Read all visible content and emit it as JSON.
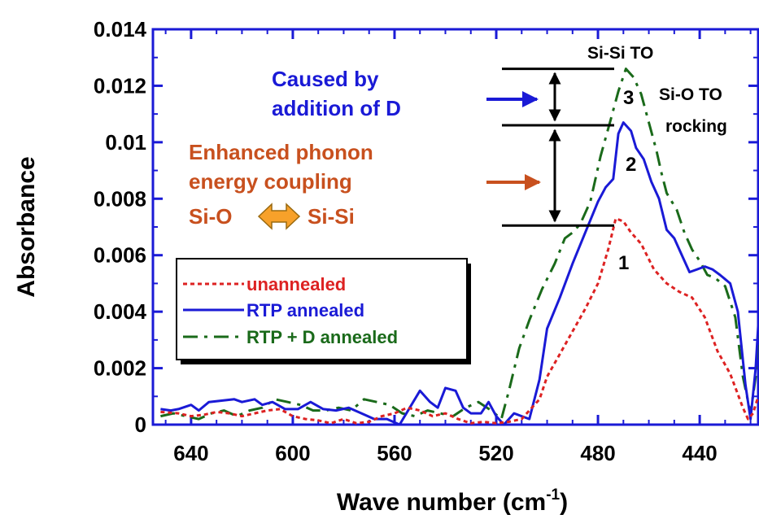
{
  "chart_data": {
    "type": "line",
    "title": "",
    "xlabel": "Wave number (cm",
    "xlabel_sup": "-1",
    "xlabel_close": ")",
    "ylabel": "Absorbance",
    "xlim": [
      655,
      417
    ],
    "ylim": [
      0,
      0.014
    ],
    "x_reversed": true,
    "x_ticks": [
      "640",
      "600",
      "560",
      "520",
      "480",
      "440"
    ],
    "x_tick_values": [
      640,
      600,
      560,
      520,
      480,
      440
    ],
    "y_ticks": [
      "0",
      "0.002",
      "0.004",
      "0.006",
      "0.008",
      "0.01",
      "0.012",
      "0.014"
    ],
    "y_tick_values": [
      0,
      0.002,
      0.004,
      0.006,
      0.008,
      0.01,
      0.012,
      0.014
    ],
    "legend_position": "middle-left",
    "series": [
      {
        "name": "unannealed",
        "color": "#dd2222",
        "dash": "dotted",
        "x": [
          652,
          645,
          640,
          635,
          630,
          625,
          620,
          615,
          610,
          605,
          600,
          595,
          590,
          585,
          580,
          575,
          570,
          565,
          560,
          555,
          550,
          545,
          540,
          535,
          530,
          525,
          520,
          515,
          510,
          507,
          503,
          500,
          495,
          490,
          485,
          480,
          476,
          473,
          470,
          467,
          463,
          458,
          453,
          448,
          443,
          438,
          433,
          428,
          423,
          421,
          419,
          417
        ],
        "y": [
          0.00045,
          0.0004,
          0.0003,
          0.00035,
          0.00045,
          0.0004,
          0.0003,
          0.0004,
          0.0005,
          0.00055,
          0.0003,
          0.0002,
          0.00015,
          5e-05,
          0.0002,
          5e-05,
          0.0001,
          0.0003,
          0.0004,
          0.0006,
          0.0005,
          0.0003,
          0.0004,
          0.0002,
          5e-05,
          0.0001,
          5e-05,
          0.0001,
          0.0002,
          0.0005,
          0.0009,
          0.0017,
          0.0025,
          0.0033,
          0.0041,
          0.005,
          0.0062,
          0.0073,
          0.0072,
          0.0068,
          0.0064,
          0.0055,
          0.005,
          0.0047,
          0.0045,
          0.0038,
          0.0026,
          0.0018,
          0.0006,
          0.0002,
          0.0004,
          0.001
        ]
      },
      {
        "name": "RTP annealed",
        "color": "#1a1ad6",
        "dash": "solid",
        "x": [
          652,
          648,
          645,
          640,
          637,
          633,
          628,
          623,
          620,
          615,
          612,
          608,
          603,
          598,
          593,
          588,
          583,
          578,
          573,
          568,
          563,
          558,
          554,
          550,
          546,
          543,
          540,
          536,
          533,
          530,
          526,
          523,
          520,
          517,
          513,
          510,
          507,
          503,
          500,
          495,
          490,
          485,
          480,
          477,
          474,
          472,
          470,
          467,
          465,
          462,
          459,
          456,
          453,
          450,
          447,
          444,
          441,
          438,
          435,
          432,
          428,
          425,
          422,
          420,
          418,
          417
        ],
        "y": [
          0.00055,
          0.0005,
          0.00055,
          0.0007,
          0.0005,
          0.0008,
          0.00085,
          0.0009,
          0.0008,
          0.0009,
          0.0007,
          0.0008,
          0.00055,
          0.00055,
          0.0008,
          0.00055,
          0.0005,
          0.0006,
          0.0004,
          0.0002,
          0.0002,
          0.0,
          0.0006,
          0.0012,
          0.0008,
          0.0006,
          0.0013,
          0.0012,
          0.0006,
          0.0004,
          0.0004,
          0.0008,
          0.0003,
          0.0,
          0.0004,
          0.0003,
          0.0002,
          0.0016,
          0.0034,
          0.0045,
          0.0057,
          0.0068,
          0.0079,
          0.0084,
          0.0087,
          0.0103,
          0.0107,
          0.0104,
          0.0098,
          0.0094,
          0.0086,
          0.008,
          0.0069,
          0.0066,
          0.006,
          0.0054,
          0.0055,
          0.0056,
          0.0055,
          0.0053,
          0.005,
          0.004,
          0.0014,
          0.0002,
          0.002,
          0.0035
        ]
      },
      {
        "name": "RTP + D annealed",
        "color": "#1a6a1a",
        "dash": "dashed",
        "x": [
          652,
          647,
          642,
          637,
          632,
          627,
          622,
          617,
          612,
          607,
          602,
          597,
          592,
          587,
          582,
          577,
          572,
          567,
          562,
          557,
          552,
          547,
          542,
          537,
          532,
          527,
          522,
          518,
          515,
          511,
          507,
          502,
          497,
          493,
          490,
          487,
          483,
          479,
          475,
          472,
          469,
          466,
          463,
          460,
          457,
          455,
          453,
          449,
          446,
          443,
          440,
          437,
          434,
          430,
          426,
          423,
          420,
          418,
          417
        ],
        "y": [
          0.0003,
          0.0004,
          0.0003,
          0.0002,
          0.0004,
          0.0005,
          0.0003,
          0.0005,
          0.0006,
          0.0009,
          0.0008,
          0.0007,
          0.0005,
          0.0005,
          0.0006,
          0.0005,
          0.0009,
          0.0008,
          0.0007,
          0.0004,
          0.0003,
          0.0005,
          0.0004,
          0.0003,
          0.0006,
          0.0008,
          0.0005,
          0.0002,
          0.0012,
          0.0027,
          0.0037,
          0.0048,
          0.0057,
          0.0066,
          0.0068,
          0.0071,
          0.0079,
          0.0095,
          0.0108,
          0.0118,
          0.0126,
          0.0123,
          0.0117,
          0.0107,
          0.0097,
          0.0089,
          0.0082,
          0.0076,
          0.0068,
          0.0062,
          0.0058,
          0.0053,
          0.0052,
          0.0049,
          0.0038,
          0.0017,
          0.0004,
          0.0017,
          0.0032
        ]
      }
    ],
    "annotations": {
      "caused_line1": "Caused by",
      "caused_line2": "addition of D",
      "enhanced_line1": "Enhanced phonon",
      "enhanced_line2": "energy coupling",
      "sio_left": "Si-O",
      "sisi_right": "Si-Si",
      "sisi_to": "Si-Si TO",
      "sio_to_line1": "Si-O TO",
      "sio_to_line2": "rocking",
      "peak1": "1",
      "peak2": "2",
      "peak3": "3"
    },
    "reference_levels": [
      0.00705,
      0.0106,
      0.0126
    ]
  }
}
